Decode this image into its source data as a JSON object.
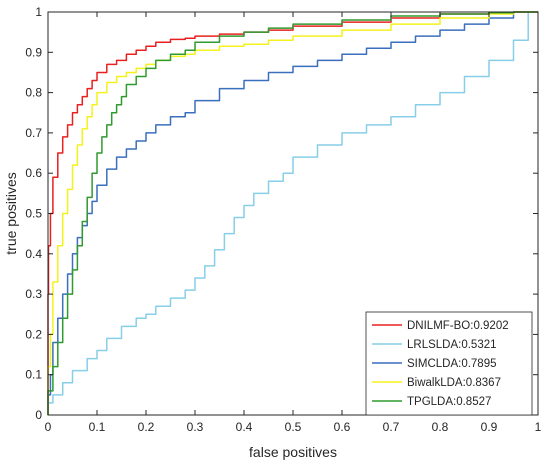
{
  "chart_data": {
    "type": "line",
    "title": "",
    "xlabel": "false positives",
    "ylabel": "true positives",
    "xlim": [
      0,
      1
    ],
    "ylim": [
      0,
      1
    ],
    "xticks": [
      "0",
      "0.1",
      "0.2",
      "0.3",
      "0.4",
      "0.5",
      "0.6",
      "0.7",
      "0.8",
      "0.9",
      "1"
    ],
    "yticks": [
      "0",
      "0.1",
      "0.2",
      "0.3",
      "0.4",
      "0.5",
      "0.6",
      "0.7",
      "0.8",
      "0.9",
      "1"
    ],
    "grid": false,
    "legend_position": "bottom-right",
    "series": [
      {
        "name": "DNILMF-BO:0.9202",
        "color": "#e8201f",
        "x": [
          0,
          0.001,
          0.005,
          0.01,
          0.02,
          0.03,
          0.04,
          0.05,
          0.06,
          0.07,
          0.08,
          0.09,
          0.1,
          0.12,
          0.14,
          0.16,
          0.18,
          0.2,
          0.22,
          0.25,
          0.28,
          0.3,
          0.35,
          0.4,
          0.45,
          0.5,
          0.6,
          0.7,
          0.8,
          0.9,
          0.95,
          1.0
        ],
        "y": [
          0,
          0.3,
          0.42,
          0.5,
          0.59,
          0.65,
          0.69,
          0.72,
          0.75,
          0.77,
          0.79,
          0.81,
          0.83,
          0.85,
          0.87,
          0.88,
          0.895,
          0.905,
          0.915,
          0.925,
          0.932,
          0.935,
          0.94,
          0.945,
          0.95,
          0.955,
          0.965,
          0.975,
          0.985,
          0.995,
          0.998,
          1.0
        ]
      },
      {
        "name": "LRLSLDA:0.5321",
        "color": "#87cee8",
        "x": [
          0,
          0.01,
          0.03,
          0.05,
          0.08,
          0.1,
          0.12,
          0.15,
          0.18,
          0.2,
          0.22,
          0.25,
          0.28,
          0.3,
          0.32,
          0.34,
          0.36,
          0.38,
          0.4,
          0.42,
          0.45,
          0.48,
          0.5,
          0.55,
          0.6,
          0.65,
          0.7,
          0.75,
          0.8,
          0.85,
          0.9,
          0.95,
          0.98,
          1.0
        ],
        "y": [
          0,
          0.03,
          0.05,
          0.08,
          0.11,
          0.14,
          0.16,
          0.19,
          0.22,
          0.24,
          0.25,
          0.27,
          0.29,
          0.31,
          0.34,
          0.37,
          0.41,
          0.45,
          0.49,
          0.52,
          0.55,
          0.58,
          0.6,
          0.64,
          0.67,
          0.7,
          0.72,
          0.74,
          0.77,
          0.8,
          0.84,
          0.88,
          0.93,
          1.0
        ]
      },
      {
        "name": "SIMCLDA:0.7895",
        "color": "#3a6fbd",
        "x": [
          0,
          0.005,
          0.01,
          0.02,
          0.03,
          0.04,
          0.05,
          0.06,
          0.07,
          0.08,
          0.09,
          0.1,
          0.12,
          0.14,
          0.16,
          0.18,
          0.2,
          0.22,
          0.25,
          0.28,
          0.3,
          0.35,
          0.4,
          0.45,
          0.5,
          0.55,
          0.6,
          0.65,
          0.7,
          0.75,
          0.8,
          0.85,
          0.9,
          0.95,
          1.0
        ],
        "y": [
          0,
          0.05,
          0.1,
          0.18,
          0.24,
          0.3,
          0.35,
          0.4,
          0.44,
          0.47,
          0.5,
          0.53,
          0.57,
          0.61,
          0.64,
          0.66,
          0.68,
          0.7,
          0.72,
          0.74,
          0.75,
          0.78,
          0.81,
          0.83,
          0.85,
          0.865,
          0.88,
          0.895,
          0.91,
          0.925,
          0.94,
          0.955,
          0.97,
          0.985,
          1.0
        ]
      },
      {
        "name": "BiwalkLDA:0.8367",
        "color": "#f4f21c",
        "x": [
          0,
          0.005,
          0.01,
          0.02,
          0.03,
          0.04,
          0.05,
          0.06,
          0.07,
          0.08,
          0.09,
          0.1,
          0.12,
          0.14,
          0.16,
          0.18,
          0.2,
          0.22,
          0.25,
          0.28,
          0.3,
          0.35,
          0.4,
          0.45,
          0.5,
          0.6,
          0.7,
          0.8,
          0.9,
          0.95,
          1.0
        ],
        "y": [
          0,
          0.12,
          0.2,
          0.33,
          0.42,
          0.5,
          0.56,
          0.62,
          0.67,
          0.71,
          0.74,
          0.77,
          0.8,
          0.825,
          0.84,
          0.85,
          0.86,
          0.87,
          0.88,
          0.89,
          0.895,
          0.905,
          0.915,
          0.92,
          0.93,
          0.94,
          0.955,
          0.97,
          0.985,
          0.995,
          1.0
        ]
      },
      {
        "name": "TPGLDA:0.8527",
        "color": "#2f9a2f",
        "x": [
          0,
          0.01,
          0.02,
          0.03,
          0.04,
          0.05,
          0.06,
          0.07,
          0.08,
          0.09,
          0.1,
          0.11,
          0.12,
          0.13,
          0.14,
          0.15,
          0.16,
          0.18,
          0.2,
          0.22,
          0.25,
          0.28,
          0.3,
          0.35,
          0.4,
          0.45,
          0.5,
          0.6,
          0.7,
          0.8,
          0.9,
          0.95,
          1.0
        ],
        "y": [
          0,
          0.06,
          0.12,
          0.18,
          0.24,
          0.3,
          0.36,
          0.42,
          0.48,
          0.54,
          0.6,
          0.65,
          0.69,
          0.72,
          0.75,
          0.77,
          0.79,
          0.82,
          0.84,
          0.86,
          0.88,
          0.895,
          0.905,
          0.925,
          0.94,
          0.95,
          0.96,
          0.97,
          0.98,
          0.99,
          0.995,
          0.998,
          1.0
        ]
      }
    ]
  }
}
